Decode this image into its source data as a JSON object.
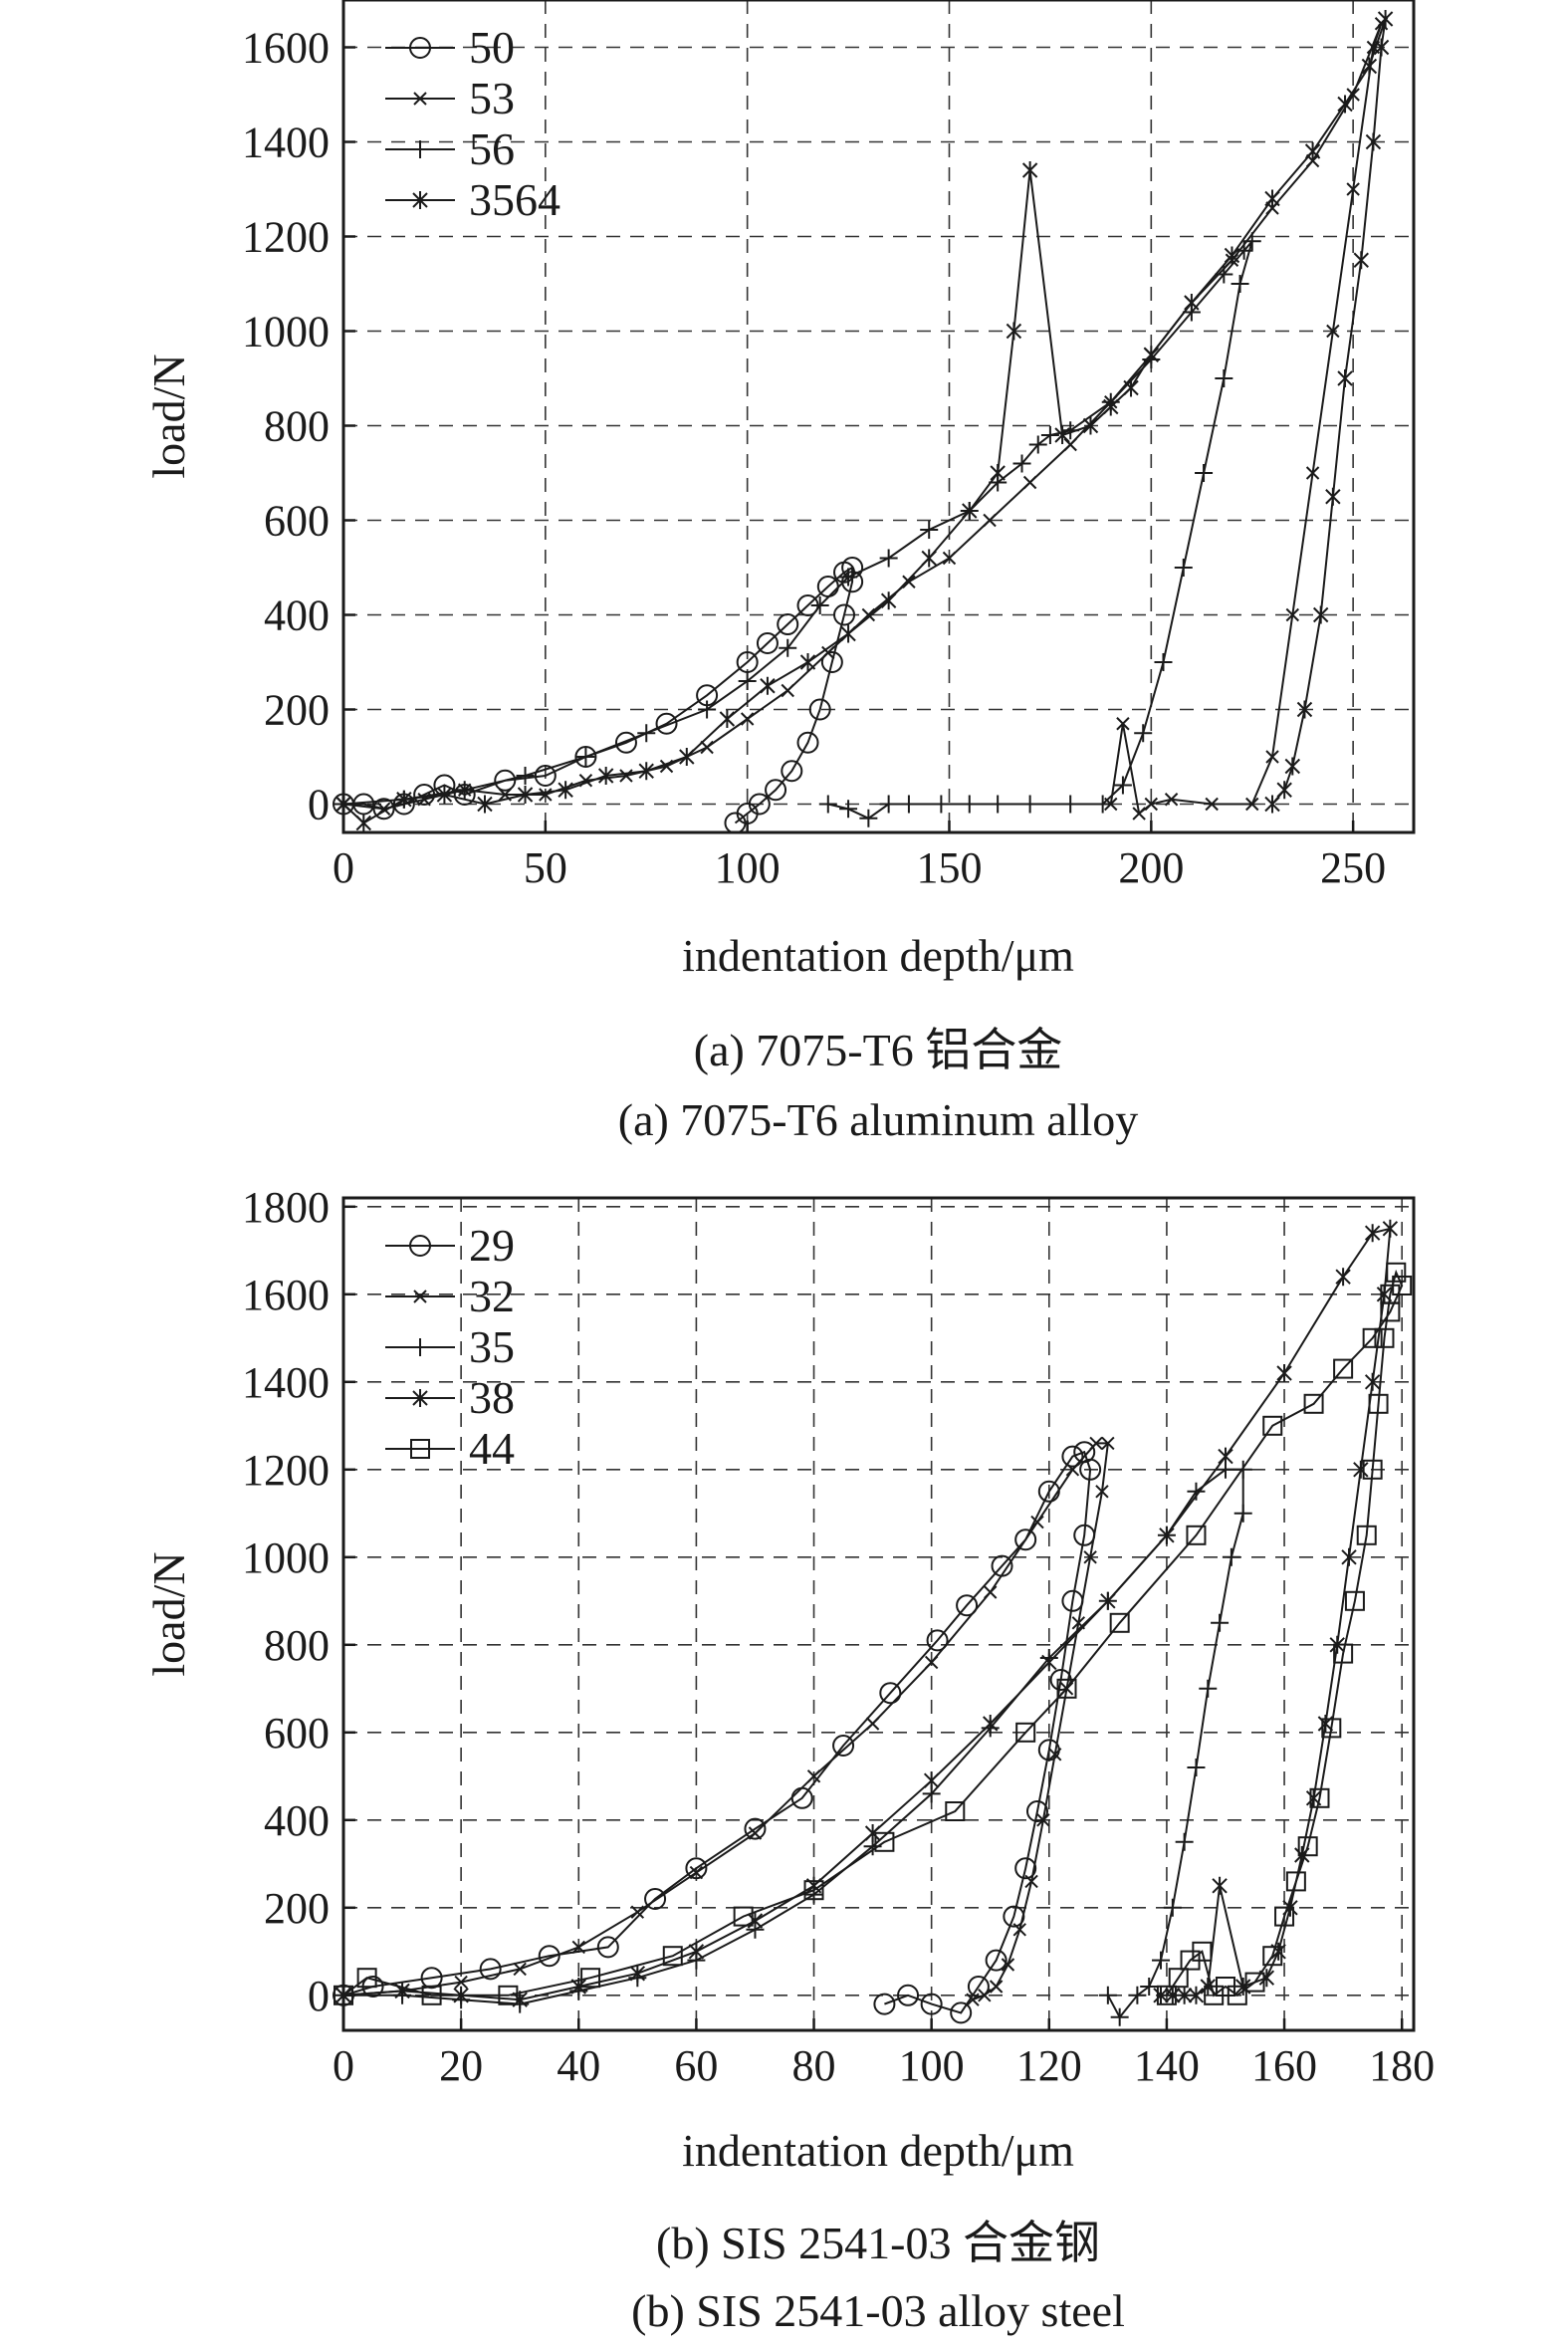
{
  "chart_data": [
    {
      "type": "line",
      "panel": "a",
      "caption_zh": "(a) 7075-T6 铝合金",
      "caption_en": "(a) 7075-T6 aluminum alloy",
      "xlabel": "indentation depth/μm",
      "ylabel": "load/N",
      "xlim": [
        0,
        265
      ],
      "ylim": [
        -60,
        1700
      ],
      "xticks": [
        0,
        50,
        100,
        150,
        200,
        250
      ],
      "yticks": [
        0,
        200,
        400,
        600,
        800,
        1000,
        1200,
        1400,
        1600
      ],
      "grid": true,
      "grid_style": "dashed",
      "legend_position": "top-left",
      "series": [
        {
          "name": "50",
          "marker": "circle",
          "x": [
            0,
            5,
            10,
            15,
            20,
            25,
            30,
            40,
            50,
            60,
            70,
            80,
            90,
            100,
            105,
            110,
            115,
            120,
            124,
            126,
            126,
            124,
            121,
            118,
            115,
            111,
            107,
            103,
            100,
            97
          ],
          "y": [
            0,
            0,
            -10,
            0,
            20,
            40,
            20,
            50,
            60,
            100,
            130,
            170,
            230,
            300,
            340,
            380,
            420,
            460,
            490,
            500,
            470,
            400,
            300,
            200,
            130,
            70,
            30,
            0,
            -20,
            -40
          ]
        },
        {
          "name": "53",
          "marker": "x",
          "x": [
            0,
            10,
            20,
            30,
            40,
            50,
            60,
            70,
            80,
            90,
            100,
            110,
            120,
            130,
            140,
            150,
            160,
            170,
            180,
            190,
            200,
            210,
            220,
            230,
            240,
            250,
            257,
            255,
            250,
            245,
            240,
            235,
            230,
            225,
            215,
            205,
            200,
            197,
            193,
            190
          ],
          "y": [
            0,
            -10,
            10,
            30,
            20,
            20,
            50,
            60,
            80,
            120,
            180,
            240,
            320,
            400,
            470,
            520,
            600,
            680,
            760,
            850,
            950,
            1060,
            1150,
            1260,
            1360,
            1500,
            1650,
            1600,
            1300,
            1000,
            700,
            400,
            100,
            0,
            0,
            10,
            0,
            -20,
            170,
            0
          ],
          "note_unordered": false
        },
        {
          "name": "56",
          "marker": "plus",
          "x": [
            0,
            15,
            30,
            45,
            60,
            75,
            90,
            100,
            110,
            118,
            125,
            135,
            145,
            155,
            162,
            168,
            172,
            175,
            180,
            190,
            200,
            210,
            218,
            223,
            225,
            222,
            218,
            213,
            208,
            203,
            198,
            193,
            188,
            180,
            170,
            162,
            155,
            148,
            140,
            135,
            130,
            125,
            120
          ],
          "y": [
            0,
            10,
            30,
            60,
            100,
            150,
            200,
            260,
            330,
            420,
            480,
            520,
            580,
            620,
            680,
            720,
            760,
            780,
            790,
            850,
            940,
            1040,
            1120,
            1170,
            1190,
            1100,
            900,
            700,
            500,
            300,
            150,
            40,
            0,
            0,
            0,
            0,
            0,
            0,
            0,
            0,
            -30,
            -10,
            0
          ]
        },
        {
          "name": "3564",
          "marker": "asterisk",
          "x": [
            0,
            5,
            15,
            25,
            35,
            45,
            55,
            65,
            75,
            85,
            95,
            105,
            115,
            125,
            135,
            145,
            155,
            162,
            166,
            170,
            178,
            185,
            190,
            195,
            200,
            210,
            220,
            230,
            240,
            248,
            254,
            258,
            257,
            255,
            252,
            248,
            245,
            242,
            238,
            235,
            233,
            230
          ],
          "y": [
            0,
            -40,
            10,
            20,
            0,
            20,
            30,
            60,
            70,
            100,
            180,
            250,
            300,
            360,
            430,
            520,
            620,
            700,
            1000,
            1340,
            780,
            800,
            840,
            880,
            950,
            1060,
            1160,
            1280,
            1380,
            1480,
            1560,
            1660,
            1600,
            1400,
            1150,
            900,
            650,
            400,
            200,
            80,
            30,
            0
          ]
        }
      ]
    },
    {
      "type": "line",
      "panel": "b",
      "caption_zh": "(b) SIS 2541-03 合金钢",
      "caption_en": "(b) SIS 2541-03 alloy steel",
      "xlabel": "indentation depth/μm",
      "ylabel": "load/N",
      "xlim": [
        0,
        182
      ],
      "ylim": [
        -80,
        1820
      ],
      "xticks": [
        0,
        20,
        40,
        60,
        80,
        100,
        120,
        140,
        160,
        180
      ],
      "yticks": [
        0,
        200,
        400,
        600,
        800,
        1000,
        1200,
        1400,
        1600,
        1800
      ],
      "grid": true,
      "grid_style": "dashed",
      "legend_position": "top-left",
      "series": [
        {
          "name": "29",
          "marker": "circle",
          "x": [
            0,
            5,
            15,
            25,
            35,
            45,
            53,
            60,
            70,
            78,
            85,
            93,
            101,
            106,
            112,
            116,
            120,
            124,
            126,
            127,
            126,
            124,
            122,
            120,
            118,
            116,
            114,
            111,
            108,
            105,
            100,
            96,
            92
          ],
          "y": [
            0,
            20,
            40,
            60,
            90,
            110,
            220,
            290,
            380,
            450,
            570,
            690,
            810,
            890,
            980,
            1040,
            1150,
            1230,
            1240,
            1200,
            1050,
            900,
            720,
            560,
            420,
            290,
            180,
            80,
            20,
            -40,
            -20,
            0,
            -20
          ]
        },
        {
          "name": "32",
          "marker": "x",
          "x": [
            0,
            10,
            20,
            30,
            40,
            50,
            60,
            70,
            80,
            90,
            100,
            110,
            118,
            124,
            128,
            130,
            129,
            127,
            125,
            123,
            121,
            119,
            117,
            115,
            113,
            111,
            109,
            107
          ],
          "y": [
            0,
            10,
            30,
            60,
            110,
            190,
            280,
            370,
            500,
            620,
            760,
            920,
            1080,
            1200,
            1260,
            1260,
            1150,
            1000,
            850,
            700,
            550,
            400,
            260,
            150,
            70,
            20,
            0,
            -10
          ]
        },
        {
          "name": "35",
          "marker": "plus",
          "x": [
            0,
            10,
            20,
            30,
            40,
            50,
            60,
            70,
            80,
            90,
            100,
            110,
            120,
            130,
            140,
            145,
            150,
            153,
            153,
            151,
            149,
            147,
            145,
            143,
            141,
            139,
            137,
            135,
            132,
            130
          ],
          "y": [
            0,
            0,
            -10,
            -20,
            10,
            40,
            80,
            150,
            230,
            340,
            460,
            610,
            770,
            900,
            1050,
            1150,
            1200,
            1200,
            1100,
            1000,
            850,
            700,
            520,
            350,
            200,
            80,
            20,
            0,
            -50,
            0
          ]
        },
        {
          "name": "38",
          "marker": "asterisk",
          "x": [
            0,
            10,
            20,
            30,
            40,
            50,
            60,
            70,
            80,
            90,
            100,
            110,
            120,
            130,
            140,
            150,
            160,
            170,
            175,
            178,
            177,
            175,
            173,
            171,
            169,
            167,
            165,
            163,
            161,
            159,
            157,
            153,
            149,
            147,
            145,
            143,
            141,
            139
          ],
          "y": [
            0,
            10,
            0,
            -10,
            20,
            50,
            100,
            170,
            250,
            370,
            490,
            620,
            760,
            900,
            1050,
            1230,
            1420,
            1640,
            1740,
            1750,
            1600,
            1400,
            1200,
            1000,
            800,
            620,
            450,
            320,
            200,
            100,
            40,
            20,
            250,
            20,
            0,
            0,
            0,
            0
          ]
        },
        {
          "name": "44",
          "marker": "square",
          "x": [
            0,
            4,
            15,
            28,
            42,
            56,
            68,
            80,
            92,
            104,
            116,
            123,
            132,
            145,
            158,
            165,
            170,
            175,
            178,
            180,
            179,
            178,
            177,
            176,
            175,
            174,
            172,
            170,
            168,
            166,
            164,
            162,
            160,
            158,
            155,
            152,
            150,
            148,
            146,
            144,
            142,
            140
          ],
          "y": [
            0,
            40,
            0,
            0,
            40,
            90,
            180,
            240,
            350,
            420,
            600,
            700,
            850,
            1050,
            1300,
            1350,
            1430,
            1500,
            1560,
            1620,
            1650,
            1600,
            1500,
            1350,
            1200,
            1050,
            900,
            780,
            610,
            450,
            340,
            260,
            180,
            90,
            30,
            0,
            20,
            0,
            100,
            80,
            40,
            0
          ]
        }
      ]
    }
  ]
}
